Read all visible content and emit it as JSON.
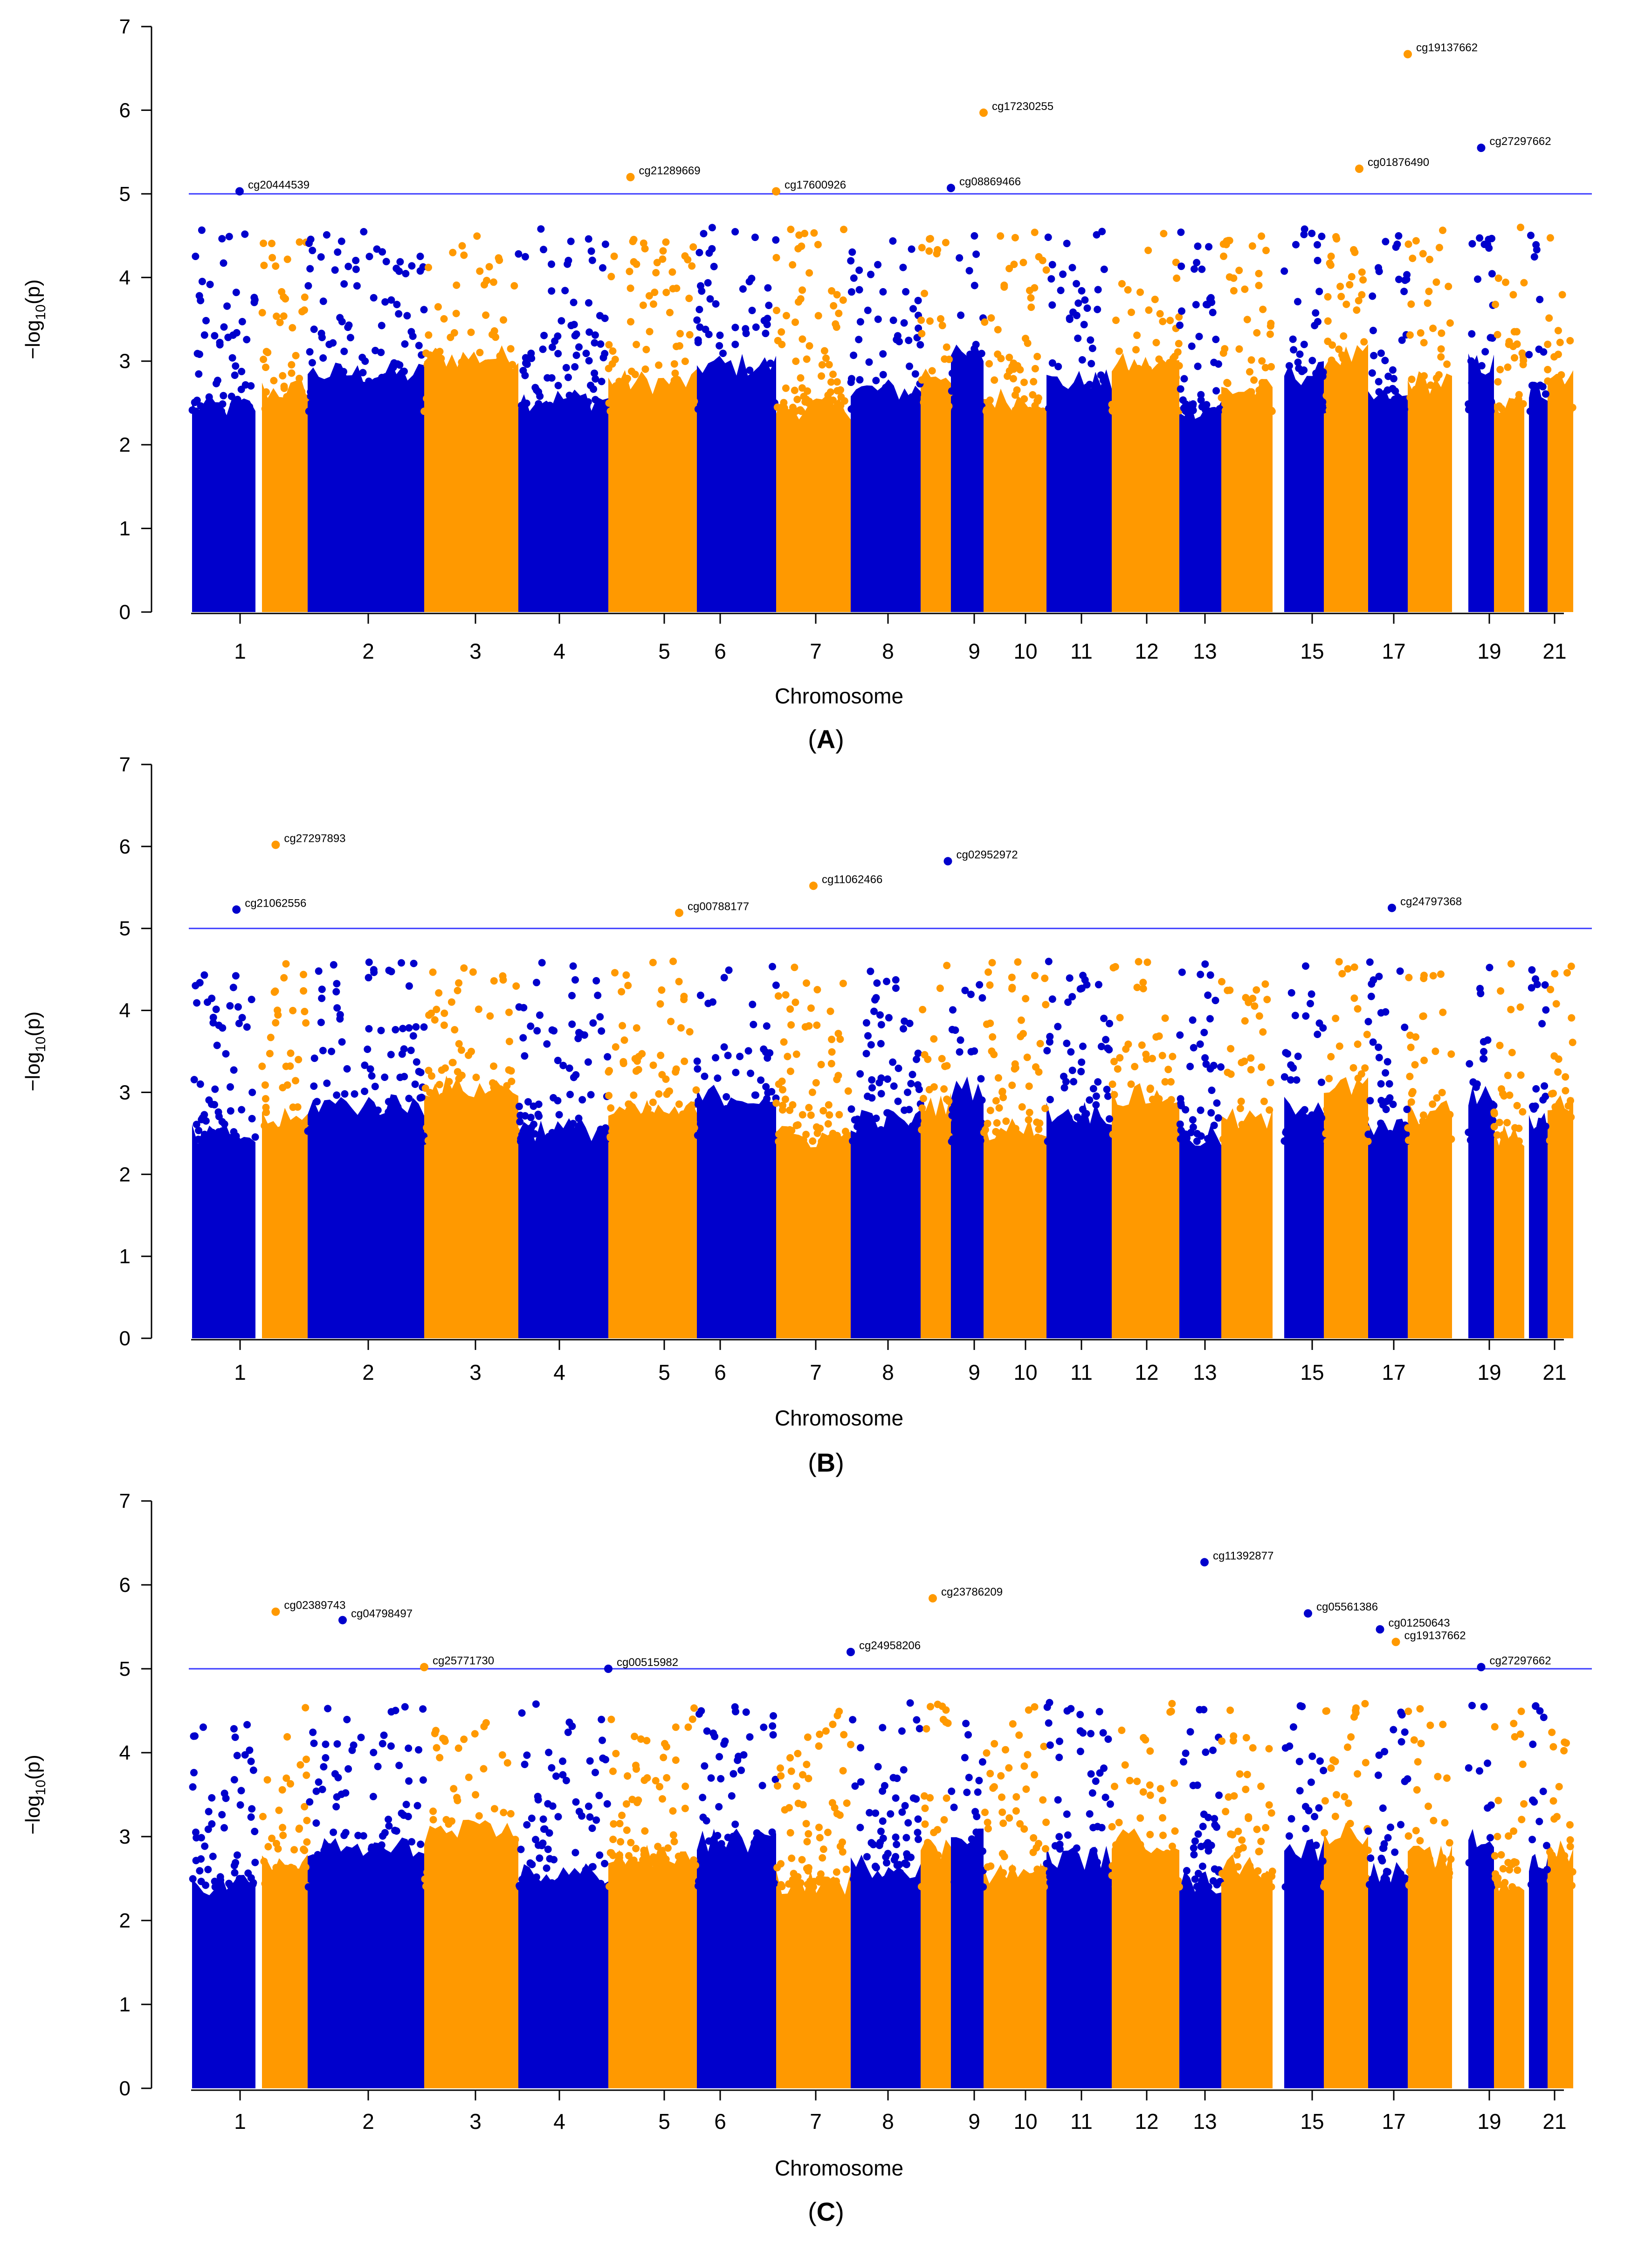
{
  "colors": {
    "blue": "#0000cc",
    "orange": "#ff9900",
    "threshold": "#3b3bff",
    "axis": "#000000"
  },
  "chart_data": [
    {
      "type": "scatter",
      "panel_label": "A",
      "title": "",
      "xlabel": "Chromosome",
      "ylabel": "-log10(p)",
      "ylim": [
        0,
        7
      ],
      "yticks": [
        "0",
        "1",
        "2",
        "3",
        "4",
        "5",
        "6",
        "7"
      ],
      "xticks": [
        "1",
        "2",
        "3",
        "4",
        "5",
        "6",
        "7",
        "8",
        "9",
        "10",
        "11",
        "12",
        "13",
        "15",
        "17",
        "19",
        "21"
      ],
      "threshold": 5,
      "grid": false,
      "series": [
        {
          "color": "blue",
          "chromosomes": [
            1,
            3,
            5,
            7,
            9,
            11,
            13,
            15,
            17,
            19,
            21
          ]
        },
        {
          "color": "orange",
          "chromosomes": [
            2,
            4,
            6,
            8,
            10,
            12,
            14,
            16,
            18,
            20,
            22
          ]
        }
      ],
      "annotations": [
        {
          "label": "cg20444539",
          "chr": 1.75,
          "y": 5.03,
          "color": "blue"
        },
        {
          "label": "cg21289669",
          "chr": 6.25,
          "y": 5.2,
          "color": "orange"
        },
        {
          "label": "cg17600926",
          "chr": 8.0,
          "y": 5.03,
          "color": "orange"
        },
        {
          "label": "cg08869466",
          "chr": 11.0,
          "y": 5.07,
          "color": "blue"
        },
        {
          "label": "cg17230255",
          "chr": 12.0,
          "y": 5.97,
          "color": "orange"
        },
        {
          "label": "cg01876490",
          "chr": 18.8,
          "y": 5.3,
          "color": "orange"
        },
        {
          "label": "cg19137662",
          "chr": 20.0,
          "y": 6.67,
          "color": "orange"
        },
        {
          "label": "cg27297662",
          "chr": 21.5,
          "y": 5.55,
          "color": "blue"
        }
      ]
    },
    {
      "type": "scatter",
      "panel_label": "B",
      "title": "",
      "xlabel": "Chromosome",
      "ylabel": "-log10(p)",
      "ylim": [
        0,
        7
      ],
      "yticks": [
        "0",
        "1",
        "2",
        "3",
        "4",
        "5",
        "6",
        "7"
      ],
      "xticks": [
        "1",
        "2",
        "3",
        "4",
        "5",
        "6",
        "7",
        "8",
        "9",
        "10",
        "11",
        "12",
        "13",
        "15",
        "17",
        "19",
        "21"
      ],
      "threshold": 5,
      "grid": false,
      "series": [
        {
          "color": "blue",
          "chromosomes": [
            1,
            3,
            5,
            7,
            9,
            11,
            13,
            15,
            17,
            19,
            21
          ]
        },
        {
          "color": "orange",
          "chromosomes": [
            2,
            4,
            6,
            8,
            10,
            12,
            14,
            16,
            18,
            20,
            22
          ]
        }
      ],
      "annotations": [
        {
          "label": "cg21062556",
          "chr": 0.7,
          "y": 5.23,
          "color": "blue"
        },
        {
          "label": "cg27297893",
          "chr": 2.3,
          "y": 6.02,
          "color": "orange"
        },
        {
          "label": "cg00788177",
          "chr": 6.8,
          "y": 5.19,
          "color": "orange"
        },
        {
          "label": "cg11062466",
          "chr": 8.5,
          "y": 5.52,
          "color": "orange"
        },
        {
          "label": "cg02952972",
          "chr": 10.9,
          "y": 5.82,
          "color": "blue"
        },
        {
          "label": "cg24797368",
          "chr": 19.6,
          "y": 5.25,
          "color": "blue"
        }
      ]
    },
    {
      "type": "scatter",
      "panel_label": "C",
      "title": "",
      "xlabel": "Chromosome",
      "ylabel": "-log10(p)",
      "ylim": [
        0,
        7
      ],
      "yticks": [
        "0",
        "1",
        "2",
        "3",
        "4",
        "5",
        "6",
        "7"
      ],
      "xticks": [
        "1",
        "2",
        "3",
        "4",
        "5",
        "6",
        "7",
        "8",
        "9",
        "10",
        "11",
        "12",
        "13",
        "15",
        "17",
        "19",
        "21"
      ],
      "threshold": 5,
      "grid": false,
      "series": [
        {
          "color": "blue",
          "chromosomes": [
            1,
            3,
            5,
            7,
            9,
            11,
            13,
            15,
            17,
            19,
            21
          ]
        },
        {
          "color": "orange",
          "chromosomes": [
            2,
            4,
            6,
            8,
            10,
            12,
            14,
            16,
            18,
            20,
            22
          ]
        }
      ],
      "annotations": [
        {
          "label": "cg02389743",
          "chr": 2.3,
          "y": 5.68,
          "color": "orange"
        },
        {
          "label": "cg04798497",
          "chr": 3.3,
          "y": 5.58,
          "color": "blue"
        },
        {
          "label": "cg25771730",
          "chr": 4.0,
          "y": 5.02,
          "color": "orange"
        },
        {
          "label": "cg00515982",
          "chr": 6.0,
          "y": 5.0,
          "color": "blue"
        },
        {
          "label": "cg24958206",
          "chr": 9.0,
          "y": 5.2,
          "color": "blue"
        },
        {
          "label": "cg23786209",
          "chr": 10.4,
          "y": 5.84,
          "color": "orange"
        },
        {
          "label": "cg11392877",
          "chr": 15.6,
          "y": 6.27,
          "color": "blue"
        },
        {
          "label": "cg05561386",
          "chr": 17.6,
          "y": 5.66,
          "color": "blue"
        },
        {
          "label": "cg01250643",
          "chr": 19.3,
          "y": 5.47,
          "color": "blue"
        },
        {
          "label": "cg19137662",
          "chr": 19.7,
          "y": 5.32,
          "color": "orange"
        },
        {
          "label": "cg27297662",
          "chr": 21.5,
          "y": 5.02,
          "color": "blue"
        }
      ]
    }
  ]
}
